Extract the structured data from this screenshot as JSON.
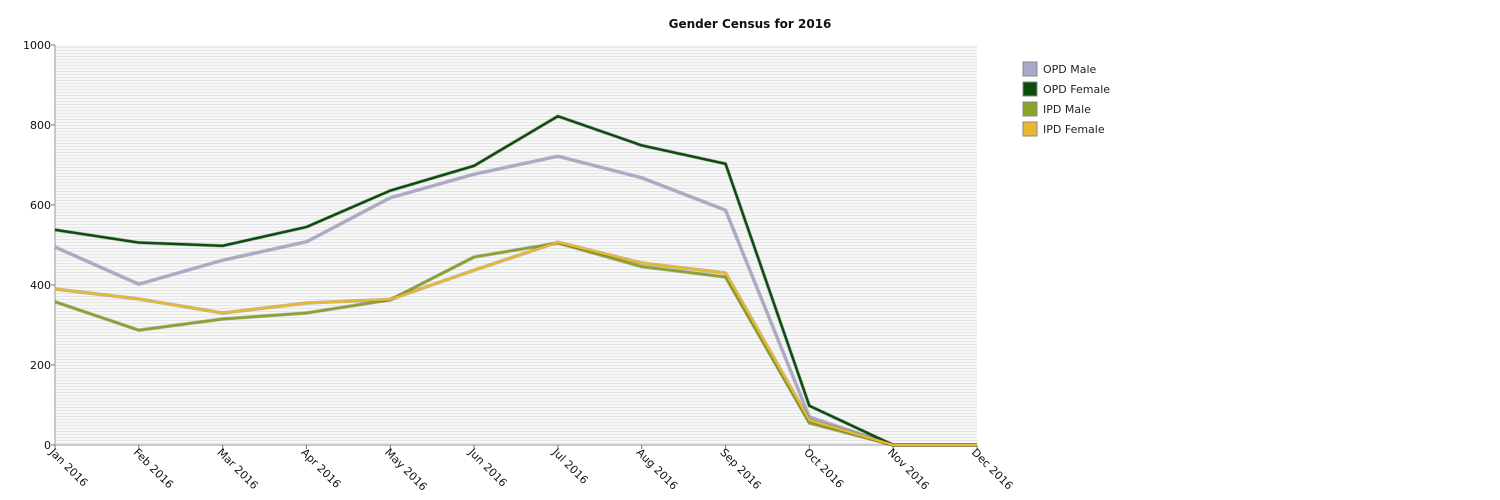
{
  "chart_data": {
    "type": "line",
    "title": "Gender Census for 2016",
    "xlabel": "",
    "ylabel": "",
    "categories": [
      "Jan 2016",
      "Feb 2016",
      "Mar 2016",
      "Apr 2016",
      "May 2016",
      "Jun 2016",
      "Jul 2016",
      "Aug 2016",
      "Sep 2016",
      "Oct 2016",
      "Nov 2016",
      "Dec 2016"
    ],
    "ylim": [
      0,
      1000
    ],
    "yticks": [
      0,
      200,
      400,
      600,
      800,
      1000
    ],
    "grid": true,
    "legend_position": "right",
    "series": [
      {
        "name": "OPD Male",
        "color": "#a9a9cc",
        "values": [
          495,
          402,
          462,
          508,
          618,
          677,
          722,
          668,
          587,
          70,
          0,
          0
        ]
      },
      {
        "name": "OPD Female",
        "color": "#0b4d0b",
        "values": [
          538,
          506,
          498,
          545,
          636,
          698,
          822,
          749,
          703,
          98,
          0,
          0
        ]
      },
      {
        "name": "IPD Male",
        "color": "#8aa32a",
        "values": [
          358,
          287,
          315,
          330,
          363,
          470,
          505,
          446,
          420,
          55,
          0,
          0
        ]
      },
      {
        "name": "IPD Female",
        "color": "#e8b930",
        "values": [
          390,
          365,
          330,
          355,
          364,
          437,
          507,
          455,
          430,
          62,
          0,
          0
        ]
      }
    ]
  }
}
